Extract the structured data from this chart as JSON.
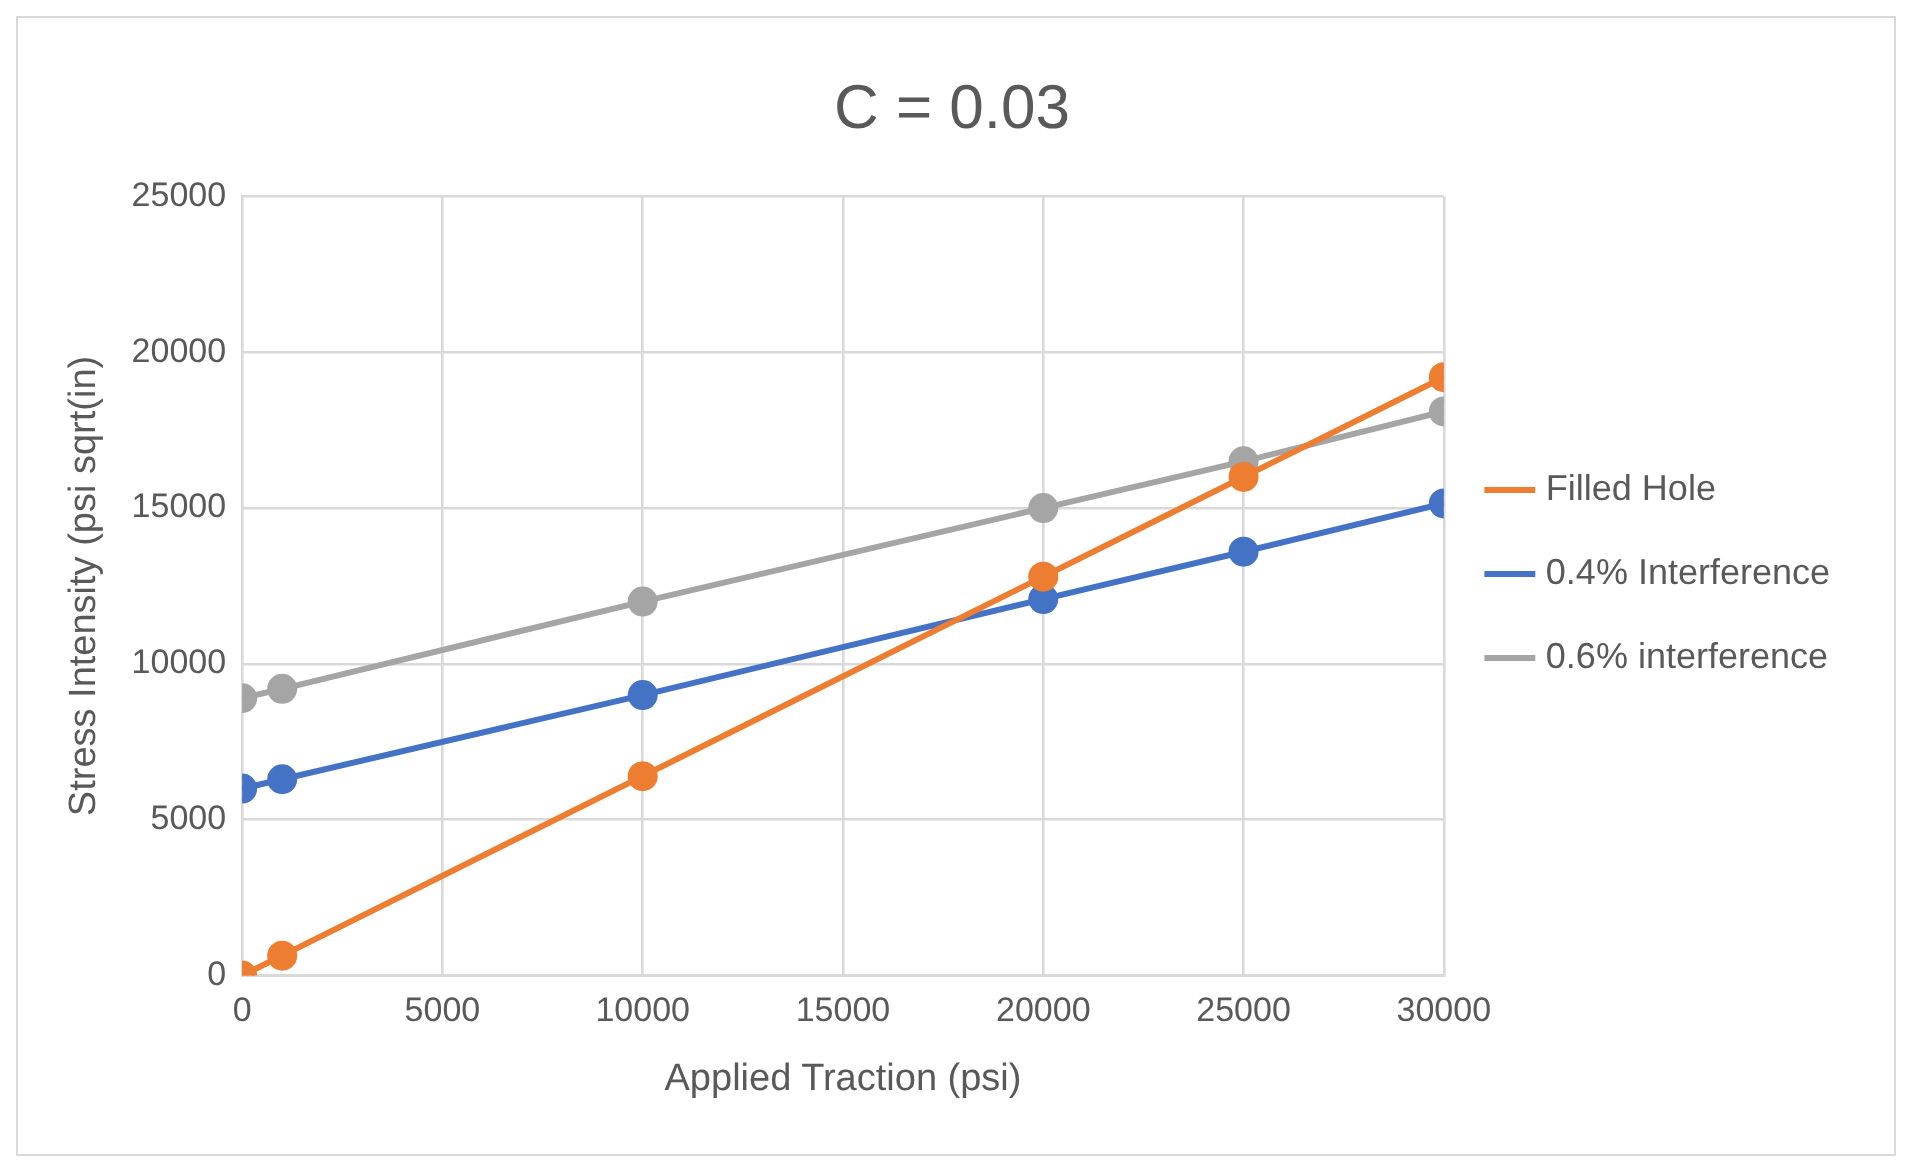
{
  "chart_data": {
    "type": "line",
    "title": "C = 0.03",
    "xlabel": "Applied Traction (psi)",
    "ylabel": "Stress Intensity (psi sqrt(in)",
    "x": [
      0,
      1000,
      10000,
      20000,
      25000,
      30000
    ],
    "series": [
      {
        "name": "Filled Hole",
        "color": "#ed7d31",
        "values": [
          0,
          640,
          6400,
          12800,
          16000,
          19200
        ]
      },
      {
        "name": "0.4% Interference",
        "color": "#4472c4",
        "values": [
          6000,
          6300,
          9000,
          12080,
          13600,
          15150
        ]
      },
      {
        "name": "0.6% interference",
        "color": "#a5a5a5",
        "values": [
          8900,
          9200,
          12000,
          15000,
          16500,
          18100
        ]
      }
    ],
    "xlim": [
      0,
      30000
    ],
    "xticks": [
      0,
      5000,
      10000,
      15000,
      20000,
      25000,
      30000
    ],
    "ylim": [
      0,
      25000
    ],
    "yticks": [
      0,
      5000,
      10000,
      15000,
      20000,
      25000
    ],
    "grid": true,
    "legend": "right",
    "marker": "circle",
    "line_style": "solid"
  }
}
